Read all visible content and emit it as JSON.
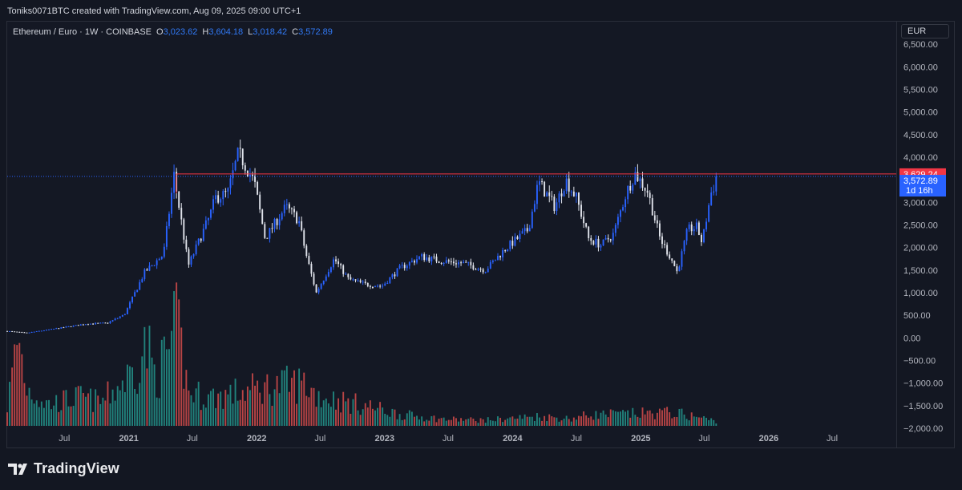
{
  "caption": "Toniks0071BTC created with TradingView.com, Aug 09, 2025 09:00 UTC+1",
  "legend": {
    "symbol": "Ethereum / Euro · 1W · COINBASE",
    "open_key": "O",
    "open": "3,023.62",
    "high_key": "H",
    "high": "3,604.18",
    "low_key": "L",
    "low": "3,018.42",
    "close_key": "C",
    "close": "3,572.89"
  },
  "currency_button": "EUR",
  "brand": "TradingView",
  "colors": {
    "background": "#131722",
    "up_candle": "#2962ff",
    "down_candle": "#e0e3eb",
    "resistance": "#f23645",
    "last_price": "#2962ff",
    "volume_up": "#26a69a",
    "volume_down": "#ef5350"
  },
  "chart_data": {
    "type": "candlestick",
    "instrument": "ETH/EUR",
    "interval": "1W",
    "y_ticks": [
      "6,500.00",
      "6,000.00",
      "5,500.00",
      "5,000.00",
      "4,500.00",
      "4,000.00",
      "3,500.00",
      "3,000.00",
      "2,500.00",
      "2,000.00",
      "1,500.00",
      "1,000.00",
      "500.00",
      "0.00",
      "−500.00",
      "−1,000.00",
      "−1,500.00",
      "−2,000.00"
    ],
    "y_tick_values": [
      6500,
      6000,
      5500,
      5000,
      4500,
      4000,
      3500,
      3000,
      2500,
      2000,
      1500,
      1000,
      500,
      0,
      -500,
      -1000,
      -1500,
      -2000
    ],
    "ylim": [
      -2000,
      7000
    ],
    "x_ticks": [
      "Jul",
      "2021",
      "Jul",
      "2022",
      "Jul",
      "2023",
      "Jul",
      "2024",
      "Jul",
      "2025",
      "Jul",
      "2026",
      "Jul"
    ],
    "x_tick_dates": [
      "2020-07-01",
      "2021-01-01",
      "2021-07-01",
      "2022-01-01",
      "2022-07-01",
      "2023-01-01",
      "2023-07-01",
      "2024-01-01",
      "2024-07-01",
      "2025-01-01",
      "2025-07-01",
      "2026-01-01",
      "2026-07-01"
    ],
    "xlim": [
      "2020-01-20",
      "2026-12-31"
    ],
    "resistance_level": 3629.24,
    "resistance_label": "3,629.24",
    "last_price": 3572.89,
    "last_price_label": "3,572.89",
    "countdown_label": "1d 16h",
    "price_path": [
      [
        "2020-01-20",
        150
      ],
      [
        "2020-03-15",
        110
      ],
      [
        "2020-06-01",
        200
      ],
      [
        "2020-09-01",
        310
      ],
      [
        "2020-11-01",
        330
      ],
      [
        "2020-12-20",
        520
      ],
      [
        "2021-02-15",
        1450
      ],
      [
        "2021-04-10",
        1850
      ],
      [
        "2021-05-10",
        3600
      ],
      [
        "2021-06-20",
        1600
      ],
      [
        "2021-08-20",
        2700
      ],
      [
        "2021-09-05",
        3100
      ],
      [
        "2021-10-10",
        3200
      ],
      [
        "2021-11-10",
        4100
      ],
      [
        "2021-12-25",
        3450
      ],
      [
        "2022-01-25",
        2200
      ],
      [
        "2022-03-25",
        2900
      ],
      [
        "2022-05-01",
        2600
      ],
      [
        "2022-05-20",
        1900
      ],
      [
        "2022-06-20",
        1000
      ],
      [
        "2022-08-10",
        1750
      ],
      [
        "2022-09-20",
        1300
      ],
      [
        "2022-11-10",
        1180
      ],
      [
        "2022-12-25",
        1150
      ],
      [
        "2023-02-15",
        1550
      ],
      [
        "2023-04-15",
        1800
      ],
      [
        "2023-06-15",
        1700
      ],
      [
        "2023-08-15",
        1650
      ],
      [
        "2023-10-15",
        1500
      ],
      [
        "2023-12-15",
        2000
      ],
      [
        "2024-02-15",
        2400
      ],
      [
        "2024-03-15",
        3450
      ],
      [
        "2024-05-01",
        2900
      ],
      [
        "2024-06-01",
        3500
      ],
      [
        "2024-07-01",
        3100
      ],
      [
        "2024-08-05",
        2200
      ],
      [
        "2024-09-10",
        2050
      ],
      [
        "2024-10-15",
        2300
      ],
      [
        "2024-11-20",
        3200
      ],
      [
        "2024-12-15",
        3650
      ],
      [
        "2025-01-20",
        3250
      ],
      [
        "2025-02-25",
        2200
      ],
      [
        "2025-04-01",
        1700
      ],
      [
        "2025-04-15",
        1450
      ],
      [
        "2025-05-15",
        2400
      ],
      [
        "2025-06-10",
        2450
      ],
      [
        "2025-06-25",
        2100
      ],
      [
        "2025-07-20",
        3200
      ],
      [
        "2025-08-09",
        3572
      ]
    ],
    "volume_path": [
      [
        "2020-01-20",
        400
      ],
      [
        "2020-02-20",
        1900
      ],
      [
        "2020-03-15",
        800
      ],
      [
        "2020-05-15",
        450
      ],
      [
        "2020-08-15",
        600
      ],
      [
        "2020-10-15",
        500
      ],
      [
        "2021-01-10",
        1100
      ],
      [
        "2021-02-20",
        1700
      ],
      [
        "2021-03-20",
        1000
      ],
      [
        "2021-04-25",
        1600
      ],
      [
        "2021-05-20",
        2100
      ],
      [
        "2021-06-20",
        700
      ],
      [
        "2021-08-20",
        600
      ],
      [
        "2021-11-15",
        700
      ],
      [
        "2022-01-20",
        800
      ],
      [
        "2022-05-15",
        900
      ],
      [
        "2022-06-20",
        650
      ],
      [
        "2022-09-10",
        500
      ],
      [
        "2022-11-10",
        420
      ],
      [
        "2023-02-15",
        240
      ],
      [
        "2023-06-15",
        140
      ],
      [
        "2023-10-15",
        120
      ],
      [
        "2024-03-15",
        200
      ],
      [
        "2024-06-15",
        150
      ],
      [
        "2024-08-05",
        230
      ],
      [
        "2024-12-01",
        250
      ],
      [
        "2025-04-01",
        280
      ],
      [
        "2025-06-15",
        180
      ],
      [
        "2025-08-09",
        90
      ]
    ]
  }
}
